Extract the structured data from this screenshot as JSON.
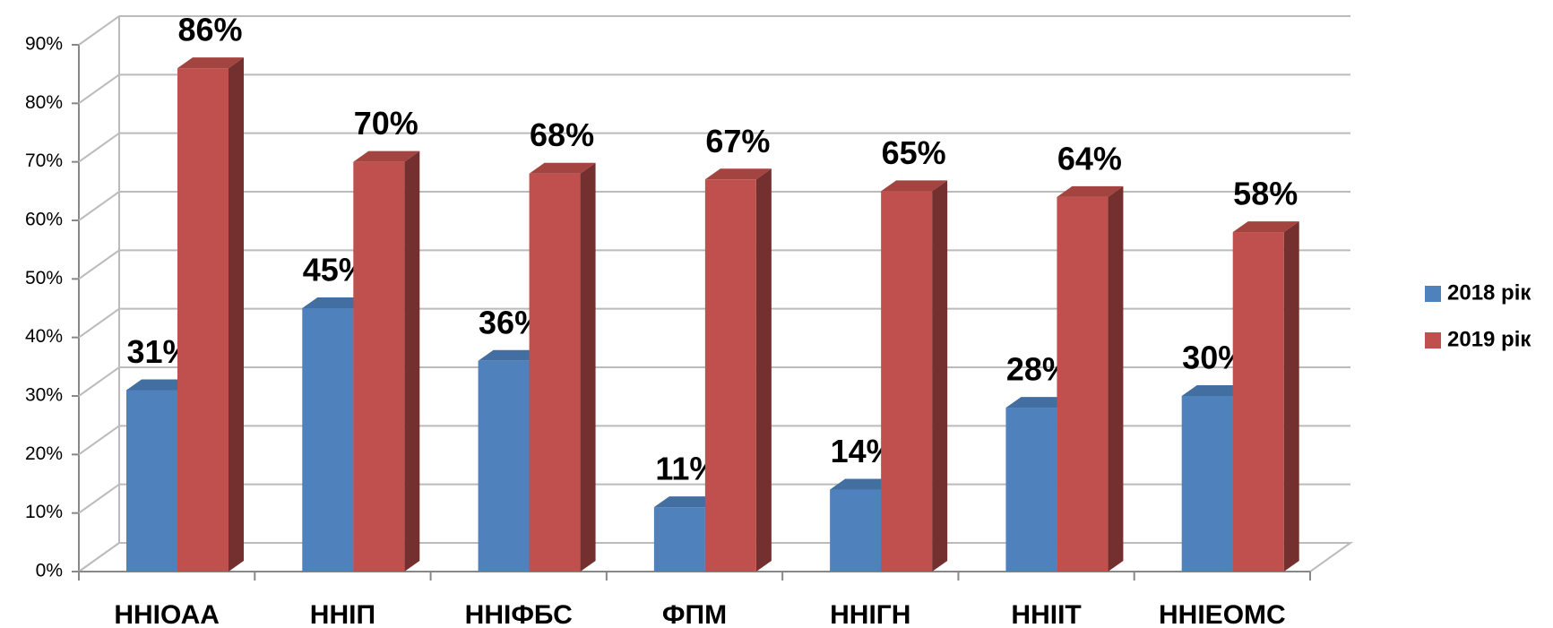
{
  "chart_data": {
    "type": "bar3d",
    "categories": [
      "ННІОАА",
      "ННІП",
      "ННІФБС",
      "ФПМ",
      "ННІГН",
      "ННІІТ",
      "ННІЕОМС"
    ],
    "series": [
      {
        "name": "2018 рік",
        "color": "#4f81bd",
        "values": [
          31,
          45,
          36,
          11,
          14,
          28,
          30
        ],
        "value_labels": [
          "31%",
          "45%",
          "36%",
          "11%",
          "14%",
          "28%",
          "30%"
        ]
      },
      {
        "name": "2019 рік",
        "color": "#c0504d",
        "values": [
          86,
          70,
          68,
          67,
          65,
          64,
          58
        ],
        "value_labels": [
          "86%",
          "70%",
          "68%",
          "67%",
          "65%",
          "64%",
          "58%"
        ]
      }
    ],
    "ylim": [
      0,
      90
    ],
    "yticks": [
      {
        "value": 0,
        "label": "0%"
      },
      {
        "value": 10,
        "label": "10%"
      },
      {
        "value": 20,
        "label": "20%"
      },
      {
        "value": 30,
        "label": "30%"
      },
      {
        "value": 40,
        "label": "40%"
      },
      {
        "value": 50,
        "label": "50%"
      },
      {
        "value": 60,
        "label": "60%"
      },
      {
        "value": 70,
        "label": "70%"
      },
      {
        "value": 80,
        "label": "80%"
      },
      {
        "value": 90,
        "label": "90%"
      }
    ],
    "grid": true,
    "legend": "right"
  }
}
